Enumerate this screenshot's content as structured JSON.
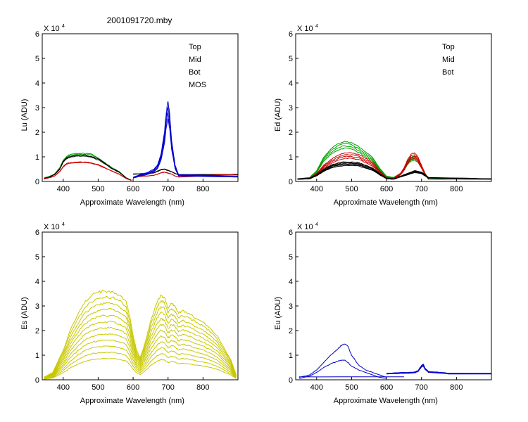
{
  "figure": {
    "title": "2001091720.mby"
  },
  "chart_data": [
    {
      "type": "line",
      "ylabel": "Lu (ADU)",
      "xlabel": "Approximate Wavelength (nm)",
      "y_exponent_label": "X 10",
      "y_exponent": "4",
      "xlim": [
        340,
        900
      ],
      "ylim": [
        0,
        6
      ],
      "x_ticks": [
        "400",
        "500",
        "600",
        "700",
        "800"
      ],
      "y_ticks": [
        "0",
        "1",
        "2",
        "3",
        "4",
        "5",
        "6"
      ],
      "legend": [
        {
          "name": "Top",
          "color": "#000000"
        },
        {
          "name": "Mid",
          "color": "#cc0000"
        },
        {
          "name": "Bot",
          "color": "#00a000"
        },
        {
          "name": "MOS",
          "color": "#0000cc"
        }
      ],
      "series": [
        {
          "name": "Bot",
          "color": "#00a000",
          "count": 2,
          "spread": 0.03,
          "x": [
            345,
            360,
            375,
            390,
            400,
            410,
            420,
            440,
            460,
            480,
            500,
            520,
            540,
            560,
            580,
            595
          ],
          "y": [
            0.15,
            0.2,
            0.3,
            0.55,
            0.85,
            1.0,
            1.08,
            1.12,
            1.12,
            1.1,
            0.95,
            0.75,
            0.55,
            0.4,
            0.15,
            0.05
          ]
        },
        {
          "name": "Top",
          "color": "#000000",
          "count": 2,
          "spread": 0.04,
          "x": [
            345,
            360,
            375,
            390,
            400,
            410,
            420,
            440,
            460,
            480,
            500,
            520,
            540,
            560,
            580,
            595
          ],
          "y": [
            0.12,
            0.18,
            0.28,
            0.5,
            0.8,
            0.95,
            1.0,
            1.05,
            1.05,
            1.0,
            0.9,
            0.72,
            0.52,
            0.38,
            0.14,
            0.05
          ]
        },
        {
          "name": "Mid",
          "color": "#cc0000",
          "count": 2,
          "spread": 0.03,
          "x": [
            345,
            360,
            375,
            390,
            400,
            410,
            420,
            440,
            460,
            480,
            500,
            520,
            540,
            560,
            580,
            595
          ],
          "y": [
            0.1,
            0.15,
            0.22,
            0.4,
            0.6,
            0.72,
            0.75,
            0.78,
            0.78,
            0.75,
            0.68,
            0.55,
            0.42,
            0.3,
            0.12,
            0.04
          ]
        },
        {
          "name": "Top (red band)",
          "color": "#000000",
          "count": 2,
          "spread": 0.03,
          "x": [
            600,
            640,
            660,
            680,
            690,
            700,
            710,
            720,
            730,
            900
          ],
          "y": [
            0.3,
            0.32,
            0.35,
            0.48,
            0.5,
            0.45,
            0.4,
            0.32,
            0.28,
            0.28
          ]
        },
        {
          "name": "Mid (red band)",
          "color": "#cc0000",
          "count": 2,
          "spread": 0.02,
          "x": [
            605,
            640,
            660,
            680,
            690,
            700,
            710,
            720,
            730,
            900
          ],
          "y": [
            0.2,
            0.22,
            0.25,
            0.35,
            0.38,
            0.34,
            0.3,
            0.22,
            0.18,
            0.3
          ]
        },
        {
          "name": "MOS",
          "color": "#0000cc",
          "count": 4,
          "spread": 0.08,
          "x": [
            600,
            620,
            640,
            660,
            670,
            680,
            690,
            695,
            700,
            705,
            710,
            720,
            730,
            900
          ],
          "y": [
            0.15,
            0.25,
            0.32,
            0.45,
            0.6,
            1.0,
            1.8,
            2.5,
            2.9,
            2.4,
            1.5,
            0.6,
            0.25,
            0.2
          ]
        }
      ]
    },
    {
      "type": "line",
      "ylabel": "Ed  (ADU)",
      "xlabel": "Approximate Wavelength (nm)",
      "y_exponent_label": "X 10",
      "y_exponent": "4",
      "xlim": [
        340,
        900
      ],
      "ylim": [
        0,
        6
      ],
      "x_ticks": [
        "400",
        "500",
        "600",
        "700",
        "800"
      ],
      "y_ticks": [
        "0",
        "1",
        "2",
        "3",
        "4",
        "5",
        "6"
      ],
      "legend": [
        {
          "name": "Top",
          "color": "#000000"
        },
        {
          "name": "Mid",
          "color": "#cc0000"
        },
        {
          "name": "Bot",
          "color": "#00a000"
        }
      ],
      "series": [
        {
          "name": "Bot",
          "color": "#00a000",
          "count": 4,
          "spread": 0.06,
          "x": [
            345,
            380,
            400,
            420,
            440,
            460,
            480,
            500,
            520,
            540,
            560,
            580,
            600,
            620,
            640,
            650,
            660,
            670,
            680,
            690,
            700,
            710,
            720,
            900
          ],
          "y": [
            0.1,
            0.15,
            0.4,
            0.9,
            1.2,
            1.4,
            1.5,
            1.45,
            1.3,
            1.1,
            0.9,
            0.5,
            0.2,
            0.15,
            0.3,
            0.5,
            0.75,
            0.9,
            0.95,
            0.85,
            0.6,
            0.3,
            0.1,
            0.1
          ]
        },
        {
          "name": "Mid",
          "color": "#cc0000",
          "count": 4,
          "spread": 0.07,
          "x": [
            345,
            380,
            400,
            420,
            440,
            460,
            480,
            500,
            520,
            540,
            560,
            580,
            600,
            620,
            640,
            650,
            660,
            670,
            680,
            690,
            700,
            710,
            720
          ],
          "y": [
            0.1,
            0.12,
            0.3,
            0.6,
            0.8,
            0.95,
            1.05,
            1.05,
            1.0,
            0.85,
            0.7,
            0.4,
            0.15,
            0.12,
            0.3,
            0.5,
            0.8,
            1.0,
            1.05,
            0.9,
            0.6,
            0.3,
            0.1
          ]
        },
        {
          "name": "Top",
          "color": "#000000",
          "count": 5,
          "spread": 0.05,
          "x": [
            345,
            380,
            400,
            420,
            440,
            460,
            480,
            500,
            520,
            540,
            560,
            580,
            600,
            620,
            640,
            660,
            680,
            700,
            720,
            900
          ],
          "y": [
            0.1,
            0.12,
            0.25,
            0.45,
            0.6,
            0.68,
            0.72,
            0.72,
            0.7,
            0.6,
            0.5,
            0.3,
            0.12,
            0.1,
            0.2,
            0.3,
            0.4,
            0.35,
            0.15,
            0.1
          ]
        }
      ]
    },
    {
      "type": "line",
      "ylabel": "Es  (ADU)",
      "xlabel": "Approximate Wavelength (nm)",
      "y_exponent_label": "X 10",
      "y_exponent": "4",
      "xlim": [
        340,
        900
      ],
      "ylim": [
        0,
        6
      ],
      "x_ticks": [
        "400",
        "500",
        "600",
        "700",
        "800"
      ],
      "y_ticks": [
        "0",
        "1",
        "2",
        "3",
        "4",
        "5",
        "6"
      ],
      "legend": [],
      "series": [
        {
          "name": "Es",
          "color": "#c8c800",
          "count": 12,
          "scale_min": 0.24,
          "spread": 0.05,
          "x": [
            345,
            370,
            400,
            420,
            440,
            460,
            480,
            500,
            520,
            540,
            560,
            580,
            590,
            600,
            610,
            620,
            630,
            640,
            650,
            660,
            670,
            680,
            690,
            700,
            710,
            720,
            730,
            740,
            760,
            780,
            800,
            820,
            840,
            860,
            880,
            895
          ],
          "y": [
            0.1,
            0.3,
            1.2,
            2.0,
            2.6,
            3.1,
            3.4,
            3.55,
            3.6,
            3.6,
            3.45,
            3.2,
            2.6,
            1.8,
            1.2,
            0.9,
            1.3,
            1.8,
            2.4,
            2.8,
            3.2,
            3.45,
            3.35,
            2.9,
            3.1,
            3.0,
            2.7,
            2.8,
            2.7,
            2.5,
            2.35,
            2.1,
            1.8,
            1.3,
            0.8,
            0.2
          ]
        }
      ]
    },
    {
      "type": "line",
      "ylabel": "Eu  (ADU)",
      "xlabel": "Approximate Wavelength (nm)",
      "y_exponent_label": "X 10",
      "y_exponent": "4",
      "xlim": [
        340,
        900
      ],
      "ylim": [
        0,
        6
      ],
      "x_ticks": [
        "400",
        "500",
        "600",
        "700",
        "800"
      ],
      "y_ticks": [
        "0",
        "1",
        "2",
        "3",
        "4",
        "5",
        "6"
      ],
      "legend": [],
      "series": [
        {
          "name": "Eu high",
          "color": "#0000cc",
          "count": 1,
          "x": [
            350,
            380,
            400,
            420,
            440,
            460,
            470,
            480,
            490,
            500,
            520,
            540,
            560,
            580,
            600
          ],
          "y": [
            0.1,
            0.2,
            0.4,
            0.7,
            1.0,
            1.25,
            1.4,
            1.45,
            1.35,
            1.0,
            0.6,
            0.4,
            0.3,
            0.2,
            0.1
          ]
        },
        {
          "name": "Eu low",
          "color": "#0000cc",
          "count": 1,
          "x": [
            350,
            380,
            400,
            420,
            440,
            460,
            470,
            480,
            490,
            500,
            520,
            540,
            560,
            580,
            600
          ],
          "y": [
            0.05,
            0.15,
            0.3,
            0.5,
            0.65,
            0.75,
            0.8,
            0.8,
            0.7,
            0.55,
            0.4,
            0.3,
            0.2,
            0.1,
            0.05
          ]
        },
        {
          "name": "Eu baseline",
          "color": "#0000cc",
          "count": 1,
          "x": [
            350,
            650
          ],
          "y": [
            0.12,
            0.12
          ]
        },
        {
          "name": "Eu red band",
          "color": "#0000cc",
          "count": 3,
          "spread": 0.06,
          "x": [
            600,
            640,
            660,
            680,
            690,
            700,
            705,
            710,
            720,
            740,
            760,
            780,
            900
          ],
          "y": [
            0.25,
            0.28,
            0.28,
            0.3,
            0.35,
            0.55,
            0.6,
            0.45,
            0.32,
            0.3,
            0.28,
            0.25,
            0.25
          ]
        }
      ]
    }
  ]
}
